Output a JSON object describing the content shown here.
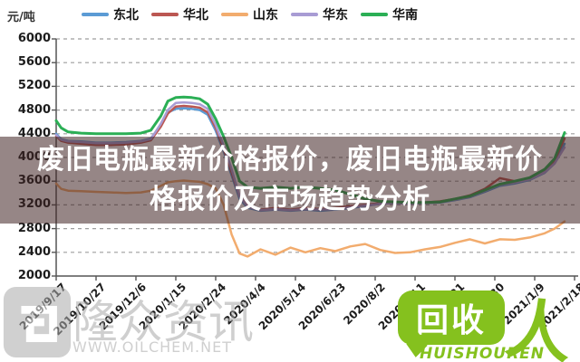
{
  "unit_label": "元/吨",
  "banner": {
    "line1": "废旧电瓶最新价格报价，废旧电瓶最新价",
    "line2": "格报价及市场趋势分析",
    "bg_color": "rgba(64,34,34,0.55)"
  },
  "watermark_left": {
    "name": "隆众资讯",
    "url": "WWW.OILCHEM.NET",
    "color": "#a9a9a9"
  },
  "watermark_right": {
    "bubble_text": "回收",
    "person_glyph": "人",
    "caption": "HUISHOUREN",
    "color": "#85c11e"
  },
  "chart_data": {
    "type": "line",
    "title": "",
    "ylabel": "元/吨",
    "ylim": [
      2000,
      6000
    ],
    "ytick_step": 400,
    "yticks": [
      2000,
      2400,
      2800,
      3200,
      3600,
      4000,
      4400,
      4800,
      5200,
      5600,
      6000
    ],
    "grid": "dashed-horizontal",
    "legend_position": "top",
    "xtick_interval_days": 40,
    "xtick_labels": [
      "2019/9/17",
      "2019/10/27",
      "2019/12/6",
      "2020/1/15",
      "2020/2/24",
      "2020/4/4",
      "2020/5/14",
      "2020/6/23",
      "2020/8/2",
      "2020/9/11",
      "2020/10/21",
      "2020/11/30",
      "2021/1/9",
      "2021/2/18"
    ],
    "x_total_days": 520,
    "x_days": [
      0,
      5,
      12,
      25,
      40,
      55,
      70,
      85,
      95,
      105,
      112,
      120,
      128,
      136,
      144,
      152,
      160,
      168,
      176,
      184,
      192,
      205,
      220,
      235,
      250,
      265,
      280,
      295,
      310,
      325,
      340,
      355,
      370,
      385,
      400,
      415,
      430,
      445,
      460,
      475,
      490,
      500,
      510
    ],
    "series": [
      {
        "name": "东北",
        "color": "#5B9BD5",
        "values": [
          4400,
          4310,
          4280,
          4270,
          4250,
          4250,
          4260,
          4280,
          4320,
          4550,
          4760,
          4820,
          4830,
          4820,
          4800,
          4720,
          4450,
          4100,
          3700,
          3300,
          3150,
          3100,
          3120,
          3100,
          3120,
          3100,
          3120,
          3150,
          3180,
          3220,
          3230,
          3220,
          3230,
          3240,
          3280,
          3330,
          3420,
          3520,
          3560,
          3620,
          3740,
          3900,
          4230
        ]
      },
      {
        "name": "华北",
        "color": "#BB5752",
        "values": [
          4360,
          4280,
          4250,
          4230,
          4210,
          4210,
          4220,
          4250,
          4290,
          4520,
          4740,
          4860,
          4870,
          4860,
          4840,
          4760,
          4500,
          4150,
          3750,
          3350,
          3180,
          3120,
          3150,
          3120,
          3150,
          3130,
          3150,
          3180,
          3200,
          3230,
          3240,
          3230,
          3240,
          3260,
          3300,
          3360,
          3470,
          3650,
          3600,
          3660,
          3780,
          3950,
          4320
        ]
      },
      {
        "name": "山东",
        "color": "#F2AC6E",
        "values": [
          3560,
          3470,
          3440,
          3430,
          3420,
          3410,
          3400,
          3410,
          3440,
          3520,
          3580,
          3600,
          3610,
          3600,
          3590,
          3550,
          3480,
          3200,
          2700,
          2380,
          2330,
          2450,
          2360,
          2480,
          2400,
          2470,
          2420,
          2500,
          2540,
          2440,
          2390,
          2400,
          2450,
          2490,
          2560,
          2620,
          2550,
          2620,
          2610,
          2650,
          2720,
          2800,
          2920
        ]
      },
      {
        "name": "华东",
        "color": "#A89CD4",
        "values": [
          4380,
          4300,
          4270,
          4260,
          4240,
          4240,
          4250,
          4270,
          4310,
          4570,
          4800,
          4920,
          4930,
          4920,
          4900,
          4820,
          4550,
          4200,
          3800,
          3350,
          3170,
          3110,
          3130,
          3110,
          3130,
          3120,
          3130,
          3160,
          3190,
          3220,
          3230,
          3220,
          3230,
          3250,
          3290,
          3340,
          3440,
          3540,
          3580,
          3630,
          3750,
          3900,
          4170
        ]
      },
      {
        "name": "华南",
        "color": "#2BAF55",
        "values": [
          4620,
          4500,
          4430,
          4410,
          4400,
          4400,
          4400,
          4410,
          4460,
          4700,
          4950,
          5010,
          5020,
          5010,
          4990,
          4900,
          4650,
          4350,
          4000,
          3600,
          3500,
          3480,
          3500,
          3480,
          3500,
          3480,
          3450,
          3380,
          3300,
          3260,
          3250,
          3240,
          3240,
          3250,
          3300,
          3350,
          3450,
          3550,
          3600,
          3660,
          3800,
          3980,
          4420
        ]
      }
    ]
  }
}
